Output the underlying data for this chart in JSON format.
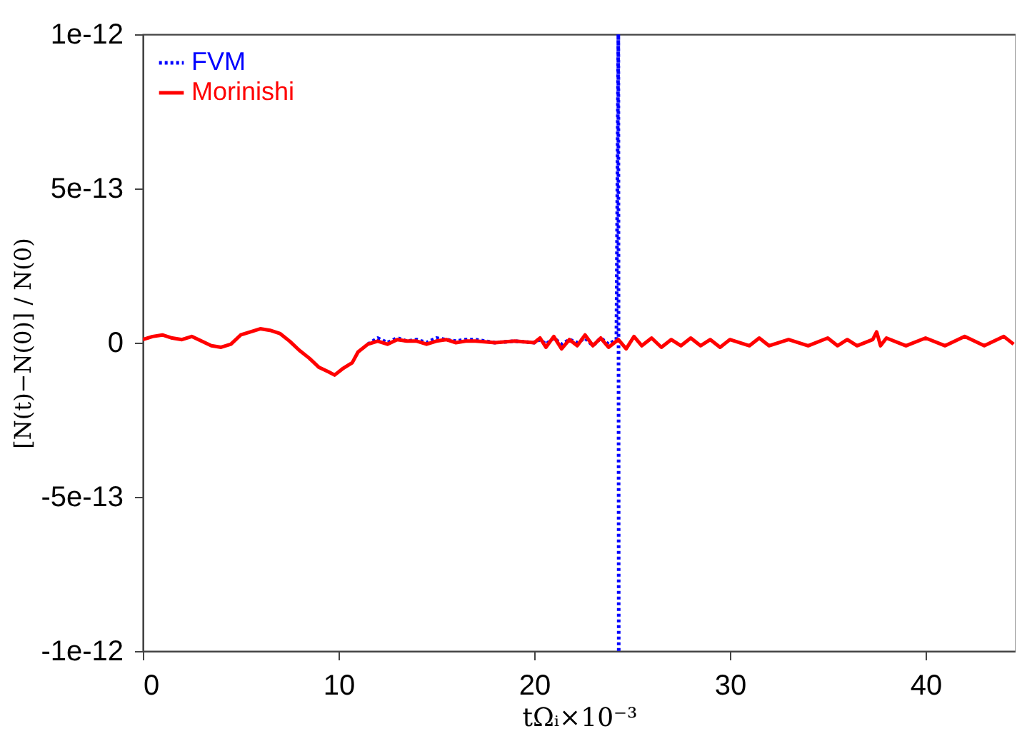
{
  "chart_data": {
    "type": "line",
    "xlabel": "tΩᵢ×10⁻³",
    "ylabel": "[N(t)−N(0)] / N(0)",
    "xlim": [
      0,
      44.6
    ],
    "xticks": [
      0,
      10,
      20,
      30,
      40
    ],
    "ylim": [
      -1e-12,
      1e-12
    ],
    "yticks": [
      {
        "value": -1e-12,
        "label": "-1e-12"
      },
      {
        "value": -5e-13,
        "label": "-5e-13"
      },
      {
        "value": 0,
        "label": "0"
      },
      {
        "value": 5e-13,
        "label": "5e-13"
      },
      {
        "value": 1e-12,
        "label": "1e-12"
      }
    ],
    "grid": false,
    "legend": "top left",
    "marker": "none",
    "series": [
      {
        "name": "FVM",
        "color": "#0000ff",
        "line_style": "dotted",
        "x": [
          11.5,
          12,
          12.5,
          13,
          13.5,
          14,
          14.5,
          15,
          15.5,
          16,
          16.5,
          17,
          18,
          19,
          20,
          20.3,
          20.6,
          21,
          21.4,
          21.8,
          22.2,
          22.6,
          23,
          23.4,
          23.8,
          24.2,
          24.3,
          24.32
        ],
        "values": [
          -5e-15,
          1.5e-14,
          0,
          1.5e-14,
          5e-15,
          1e-14,
          0,
          1.5e-14,
          1e-14,
          5e-15,
          1e-14,
          1e-14,
          0,
          5e-15,
          0,
          1e-14,
          -5e-15,
          1.5e-14,
          -5e-15,
          1e-14,
          0,
          1.5e-14,
          -1e-14,
          1.5e-14,
          -5e-15,
          1e-14,
          1e-12,
          -1e-12
        ]
      },
      {
        "name": "Morinishi",
        "color": "#ff0000",
        "line_style": "solid",
        "x": [
          0,
          0.5,
          1,
          1.5,
          2,
          2.5,
          3,
          3.5,
          4,
          4.5,
          5,
          5.5,
          6,
          6.5,
          7,
          7.5,
          8,
          8.5,
          9,
          9.5,
          9.8,
          10.2,
          10.7,
          11,
          11.5,
          12,
          12.5,
          13,
          13.5,
          14,
          14.5,
          15,
          15.5,
          16,
          16.5,
          17,
          18,
          19,
          20,
          20.3,
          20.6,
          21,
          21.4,
          21.8,
          22.2,
          22.6,
          23,
          23.4,
          23.8,
          24.3,
          24.7,
          25.1,
          25.5,
          26,
          26.5,
          27,
          27.5,
          28,
          28.5,
          29,
          29.5,
          30,
          31,
          31.5,
          32,
          33,
          34,
          35,
          35.5,
          36,
          36.5,
          37.3,
          37.5,
          37.7,
          38,
          39,
          40,
          41,
          42,
          43,
          44,
          44.5
        ],
        "values": [
          1e-14,
          2e-14,
          2.5e-14,
          1.5e-14,
          1e-14,
          2e-14,
          5e-15,
          -1e-14,
          -1.5e-14,
          -5e-15,
          2.5e-14,
          3.5e-14,
          4.5e-14,
          4e-14,
          3e-14,
          5e-15,
          -2.5e-14,
          -5e-14,
          -8e-14,
          -9.5e-14,
          -1.05e-13,
          -8.5e-14,
          -6.5e-14,
          -3e-14,
          -5e-15,
          5e-15,
          -5e-15,
          1e-14,
          5e-15,
          5e-15,
          -5e-15,
          5e-15,
          1e-14,
          0,
          5e-15,
          5e-15,
          0,
          5e-15,
          0,
          1.5e-14,
          -1.5e-14,
          2e-14,
          -2e-14,
          1e-14,
          -1e-14,
          2.5e-14,
          -1e-14,
          1.5e-14,
          -1.5e-14,
          1e-14,
          -2e-14,
          2e-14,
          -1e-14,
          1.5e-14,
          -1.5e-14,
          1e-14,
          -1e-14,
          1.5e-14,
          -1e-14,
          1e-14,
          -1.5e-14,
          1e-14,
          -1e-14,
          1.5e-14,
          -1e-14,
          1e-14,
          -1e-14,
          1.5e-14,
          -1e-14,
          1e-14,
          -1e-14,
          1e-14,
          3.5e-14,
          -1e-14,
          1.5e-14,
          -1e-14,
          1.5e-14,
          -1e-14,
          2e-14,
          -1e-14,
          2e-14,
          -5e-15
        ]
      }
    ]
  }
}
